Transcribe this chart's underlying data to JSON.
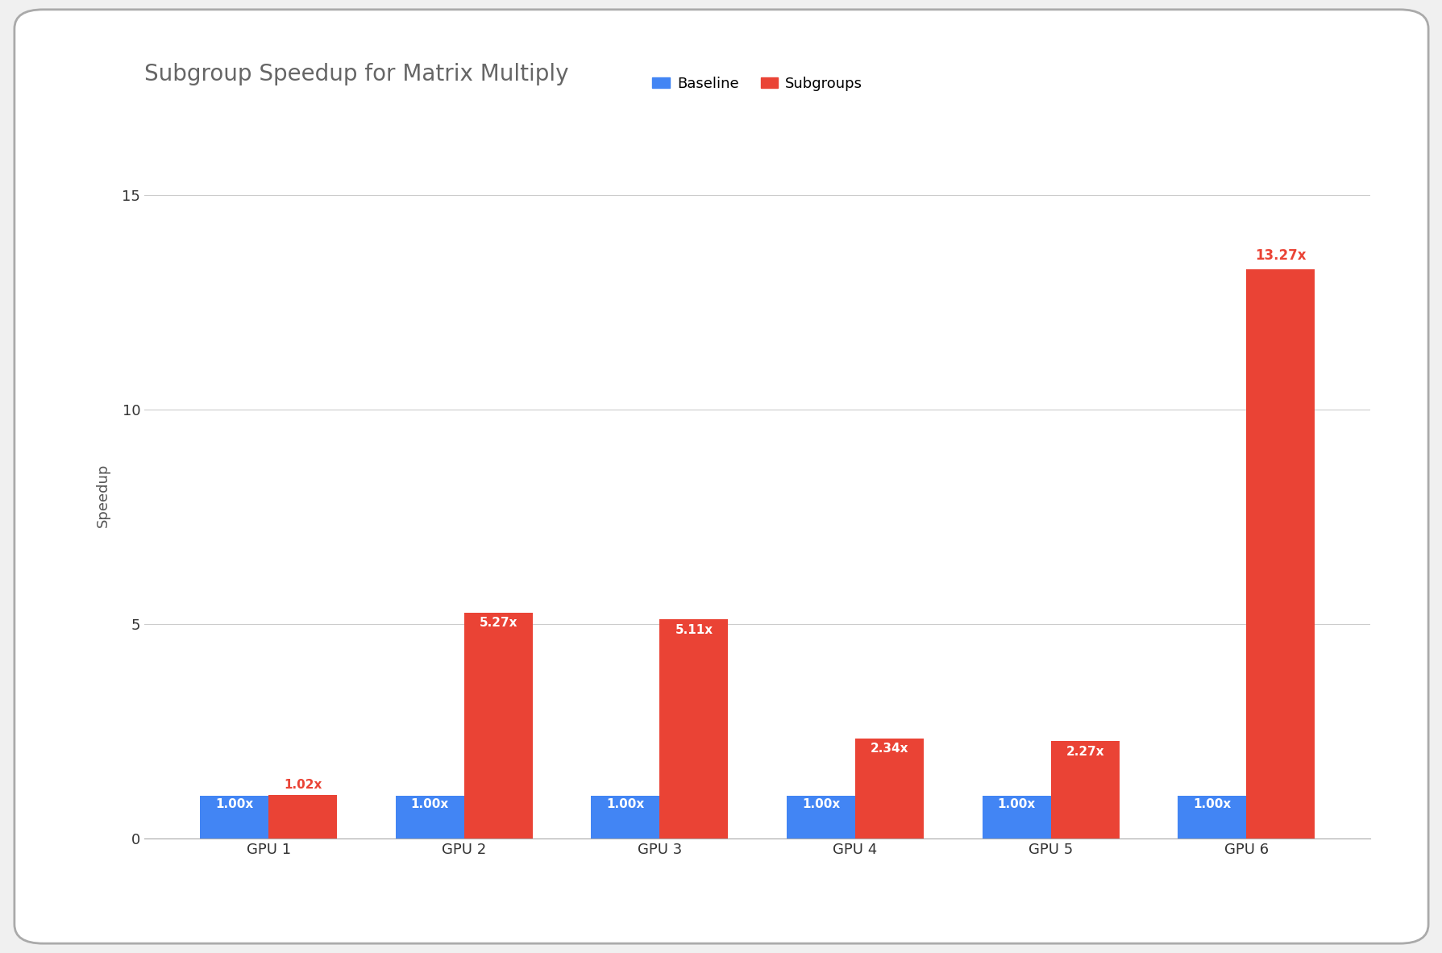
{
  "title": "Subgroup Speedup for Matrix Multiply",
  "ylabel": "Speedup",
  "categories": [
    "GPU 1",
    "GPU 2",
    "GPU 3",
    "GPU 4",
    "GPU 5",
    "GPU 6"
  ],
  "baseline_values": [
    1.0,
    1.0,
    1.0,
    1.0,
    1.0,
    1.0
  ],
  "subgroup_values": [
    1.02,
    5.27,
    5.11,
    2.34,
    2.27,
    13.27
  ],
  "baseline_color": "#4285F4",
  "subgroup_color": "#EA4335",
  "ylim": [
    0,
    16
  ],
  "yticks": [
    0,
    5,
    10,
    15
  ],
  "bar_width": 0.35,
  "baseline_label": "Baseline",
  "subgroup_label": "Subgroups",
  "background_color": "#FFFFFF",
  "outer_background": "#F0F0F0",
  "grid_color": "#CCCCCC",
  "title_color": "#666666",
  "title_fontsize": 20,
  "label_fontsize": 13,
  "tick_fontsize": 13,
  "legend_fontsize": 13,
  "annotation_fontsize": 11,
  "bar_label_color_baseline": "#FFFFFF",
  "bar_label_color_subgroup_inside": "#FFFFFF",
  "bar_label_color_subgroup_outside": "#EA4335"
}
